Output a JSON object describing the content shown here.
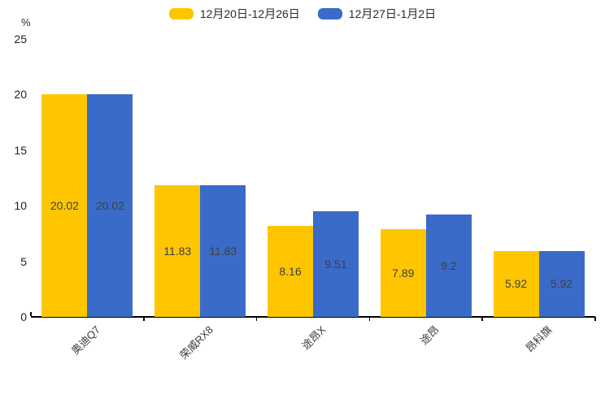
{
  "chart_data": {
    "type": "bar",
    "unit": "%",
    "categories": [
      "奥迪Q7",
      "荣威RX8",
      "途昂X",
      "途昂",
      "昂科旗"
    ],
    "series": [
      {
        "name": "12月20日-12月26日",
        "color": "#FFC600",
        "values": [
          20.02,
          11.83,
          8.16,
          7.89,
          5.92
        ]
      },
      {
        "name": "12月27日-1月2日",
        "color": "#3A6BC8",
        "values": [
          20.02,
          11.83,
          9.51,
          9.2,
          5.92
        ]
      }
    ],
    "title": "",
    "xlabel": "",
    "ylabel": "%",
    "ylim": [
      0,
      25
    ],
    "yticks": [
      0,
      5,
      10,
      15,
      20,
      25
    ],
    "grid": false,
    "legend_position": "top-center",
    "value_labels": "centered-inside-bars",
    "value_label_color": "#3f3f3f",
    "axis_color": "#000000"
  }
}
